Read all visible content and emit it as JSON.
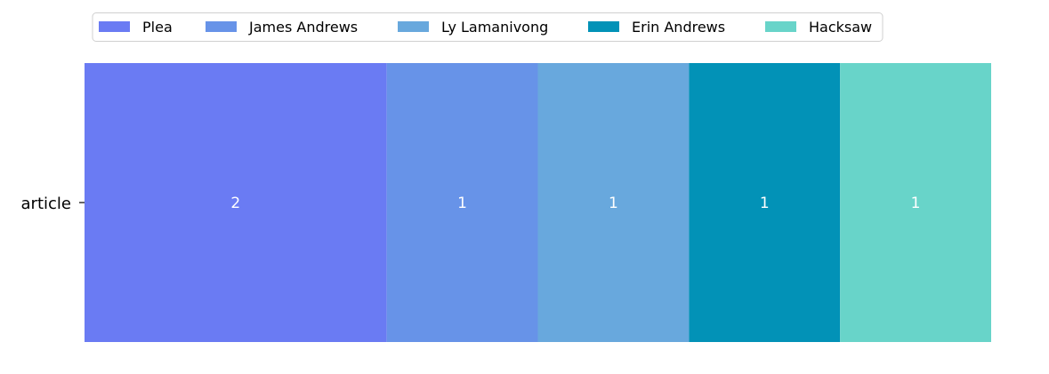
{
  "chart_data": {
    "type": "bar",
    "orientation": "horizontal",
    "stacked": true,
    "categories": [
      "article"
    ],
    "series": [
      {
        "name": "Plea",
        "values": [
          2
        ],
        "color": "#6a7bf3"
      },
      {
        "name": "James Andrews",
        "values": [
          1
        ],
        "color": "#6793e8"
      },
      {
        "name": "Ly Lamanivong",
        "values": [
          1
        ],
        "color": "#68a8dd"
      },
      {
        "name": "Erin Andrews",
        "values": [
          1
        ],
        "color": "#0292b7"
      },
      {
        "name": "Hacksaw",
        "values": [
          1
        ],
        "color": "#68d4c9"
      }
    ],
    "xlim": [
      0,
      6
    ],
    "legend_position": "top",
    "grid": false,
    "data_labels": true,
    "label_color": "#ffffff"
  }
}
